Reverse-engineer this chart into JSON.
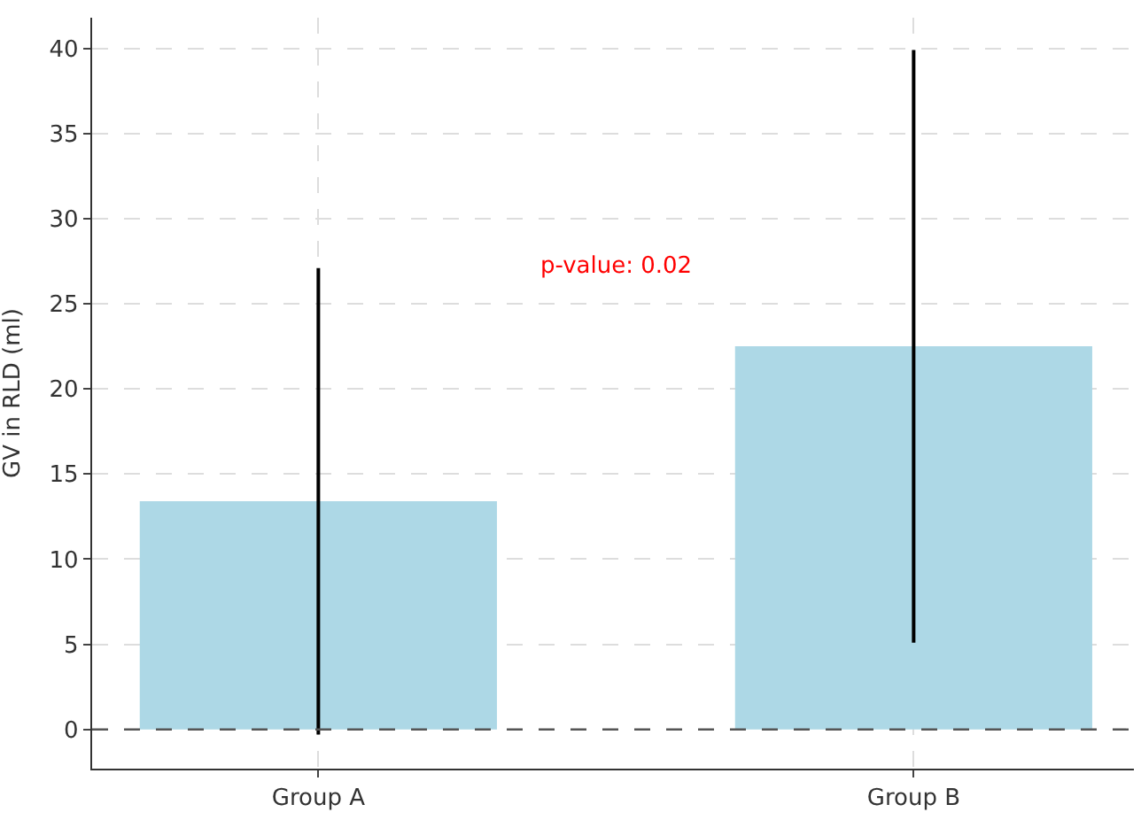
{
  "chart_data": {
    "type": "bar",
    "ylabel": "GV in RLD (ml)",
    "categories": [
      "Group A",
      "Group B"
    ],
    "values": [
      13.4,
      22.5
    ],
    "errors": [
      13.7,
      17.4
    ],
    "color": "#add8e6",
    "ylim": [
      -2.3,
      41.8
    ],
    "yticks": [
      0,
      5,
      10,
      15,
      20,
      25,
      30,
      35,
      40
    ],
    "grid": true,
    "ref_lines": [
      {
        "axis": "y",
        "value": 0,
        "color": "#555555",
        "line_style": "dashed"
      }
    ],
    "annotations": [
      "p-value: 0.02"
    ]
  }
}
